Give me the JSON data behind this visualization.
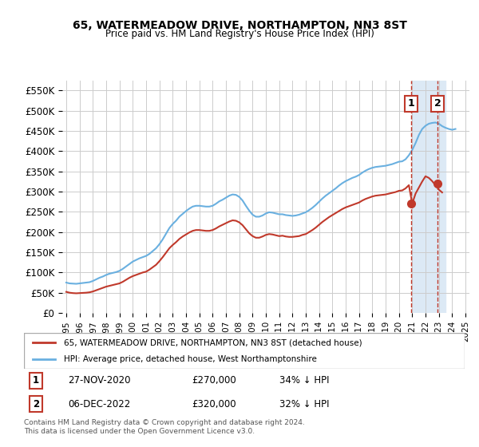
{
  "title": "65, WATERMEADOW DRIVE, NORTHAMPTON, NN3 8ST",
  "subtitle": "Price paid vs. HM Land Registry's House Price Index (HPI)",
  "legend_line1": "65, WATERMEADOW DRIVE, NORTHAMPTON, NN3 8ST (detached house)",
  "legend_line2": "HPI: Average price, detached house, West Northamptonshire",
  "table_row1": [
    "1",
    "27-NOV-2020",
    "£270,000",
    "34% ↓ HPI"
  ],
  "table_row2": [
    "2",
    "06-DEC-2022",
    "£320,000",
    "32% ↓ HPI"
  ],
  "footer": "Contains HM Land Registry data © Crown copyright and database right 2024.\nThis data is licensed under the Open Government Licence v3.0.",
  "hpi_color": "#6ab0e0",
  "price_color": "#c0392b",
  "marker1_color": "#c0392b",
  "marker2_color": "#c0392b",
  "highlight_color": "#dce9f5",
  "dashed_color": "#c0392b",
  "ylim": [
    0,
    575000
  ],
  "yticks": [
    0,
    50000,
    100000,
    150000,
    200000,
    250000,
    300000,
    350000,
    400000,
    450000,
    500000,
    550000
  ],
  "ytick_labels": [
    "£0",
    "£50K",
    "£100K",
    "£150K",
    "£200K",
    "£250K",
    "£300K",
    "£350K",
    "£400K",
    "£450K",
    "£500K",
    "£550K"
  ],
  "hpi_data": {
    "dates": [
      1995.0,
      1995.25,
      1995.5,
      1995.75,
      1996.0,
      1996.25,
      1996.5,
      1996.75,
      1997.0,
      1997.25,
      1997.5,
      1997.75,
      1998.0,
      1998.25,
      1998.5,
      1998.75,
      1999.0,
      1999.25,
      1999.5,
      1999.75,
      2000.0,
      2000.25,
      2000.5,
      2000.75,
      2001.0,
      2001.25,
      2001.5,
      2001.75,
      2002.0,
      2002.25,
      2002.5,
      2002.75,
      2003.0,
      2003.25,
      2003.5,
      2003.75,
      2004.0,
      2004.25,
      2004.5,
      2004.75,
      2005.0,
      2005.25,
      2005.5,
      2005.75,
      2006.0,
      2006.25,
      2006.5,
      2006.75,
      2007.0,
      2007.25,
      2007.5,
      2007.75,
      2008.0,
      2008.25,
      2008.5,
      2008.75,
      2009.0,
      2009.25,
      2009.5,
      2009.75,
      2010.0,
      2010.25,
      2010.5,
      2010.75,
      2011.0,
      2011.25,
      2011.5,
      2011.75,
      2012.0,
      2012.25,
      2012.5,
      2012.75,
      2013.0,
      2013.25,
      2013.5,
      2013.75,
      2014.0,
      2014.25,
      2014.5,
      2014.75,
      2015.0,
      2015.25,
      2015.5,
      2015.75,
      2016.0,
      2016.25,
      2016.5,
      2016.75,
      2017.0,
      2017.25,
      2017.5,
      2017.75,
      2018.0,
      2018.25,
      2018.5,
      2018.75,
      2019.0,
      2019.25,
      2019.5,
      2019.75,
      2020.0,
      2020.25,
      2020.5,
      2020.75,
      2021.0,
      2021.25,
      2021.5,
      2021.75,
      2022.0,
      2022.25,
      2022.5,
      2022.75,
      2023.0,
      2023.25,
      2023.5,
      2023.75,
      2024.0,
      2024.25
    ],
    "values": [
      75000,
      73000,
      72500,
      72000,
      73000,
      74000,
      75000,
      76000,
      79000,
      83000,
      87000,
      90000,
      94000,
      97000,
      99000,
      101000,
      104000,
      109000,
      115000,
      121000,
      127000,
      131000,
      135000,
      138000,
      141000,
      146000,
      153000,
      160000,
      170000,
      182000,
      196000,
      210000,
      220000,
      228000,
      238000,
      245000,
      252000,
      258000,
      263000,
      265000,
      265000,
      264000,
      263000,
      263000,
      265000,
      270000,
      276000,
      280000,
      285000,
      290000,
      293000,
      292000,
      287000,
      278000,
      265000,
      253000,
      243000,
      238000,
      238000,
      241000,
      246000,
      249000,
      248000,
      246000,
      244000,
      244000,
      242000,
      241000,
      240000,
      241000,
      243000,
      246000,
      249000,
      254000,
      260000,
      267000,
      275000,
      283000,
      290000,
      296000,
      302000,
      308000,
      315000,
      321000,
      326000,
      330000,
      334000,
      337000,
      341000,
      347000,
      352000,
      356000,
      359000,
      361000,
      362000,
      363000,
      364000,
      366000,
      368000,
      371000,
      374000,
      375000,
      380000,
      390000,
      403000,
      420000,
      440000,
      455000,
      463000,
      468000,
      470000,
      471000,
      468000,
      462000,
      458000,
      455000,
      453000,
      455000
    ],
    "highlight_start": 2021.0,
    "highlight_end": 2023.5
  },
  "price_data": {
    "dates": [
      1995.0,
      1995.25,
      1995.5,
      1995.75,
      1996.0,
      1996.25,
      1996.5,
      1996.75,
      1997.0,
      1997.25,
      1997.5,
      1997.75,
      1998.0,
      1998.25,
      1998.5,
      1998.75,
      1999.0,
      1999.25,
      1999.5,
      1999.75,
      2000.0,
      2000.25,
      2000.5,
      2000.75,
      2001.0,
      2001.25,
      2001.5,
      2001.75,
      2002.0,
      2002.25,
      2002.5,
      2002.75,
      2003.0,
      2003.25,
      2003.5,
      2003.75,
      2004.0,
      2004.25,
      2004.5,
      2004.75,
      2005.0,
      2005.25,
      2005.5,
      2005.75,
      2006.0,
      2006.25,
      2006.5,
      2006.75,
      2007.0,
      2007.25,
      2007.5,
      2007.75,
      2008.0,
      2008.25,
      2008.5,
      2008.75,
      2009.0,
      2009.25,
      2009.5,
      2009.75,
      2010.0,
      2010.25,
      2010.5,
      2010.75,
      2011.0,
      2011.25,
      2011.5,
      2011.75,
      2012.0,
      2012.25,
      2012.5,
      2012.75,
      2013.0,
      2013.25,
      2013.5,
      2013.75,
      2014.0,
      2014.25,
      2014.5,
      2014.75,
      2015.0,
      2015.25,
      2015.5,
      2015.75,
      2016.0,
      2016.25,
      2016.5,
      2016.75,
      2017.0,
      2017.25,
      2017.5,
      2017.75,
      2018.0,
      2018.25,
      2018.5,
      2018.75,
      2019.0,
      2019.25,
      2019.5,
      2019.75,
      2020.0,
      2020.25,
      2020.5,
      2020.75,
      2021.0,
      2021.25,
      2021.5,
      2021.75,
      2022.0,
      2022.25,
      2022.5,
      2022.75,
      2023.0,
      2023.25
    ],
    "values": [
      52000,
      50000,
      49000,
      48500,
      49000,
      49500,
      50000,
      51000,
      53000,
      56000,
      59000,
      62000,
      65000,
      67000,
      69000,
      71000,
      73000,
      77000,
      82000,
      87000,
      91000,
      94000,
      97000,
      100000,
      102000,
      107000,
      113000,
      119000,
      128000,
      138000,
      149000,
      160000,
      168000,
      175000,
      183000,
      189000,
      194000,
      199000,
      203000,
      205000,
      205000,
      204000,
      203000,
      203000,
      205000,
      209000,
      214000,
      218000,
      222000,
      226000,
      229000,
      228000,
      224000,
      217000,
      207000,
      197000,
      190000,
      186000,
      186000,
      189000,
      193000,
      195000,
      194000,
      192000,
      190000,
      191000,
      189000,
      188000,
      188000,
      189000,
      190000,
      193000,
      195000,
      200000,
      205000,
      211000,
      218000,
      225000,
      231000,
      237000,
      242000,
      247000,
      252000,
      257000,
      261000,
      264000,
      267000,
      270000,
      273000,
      278000,
      282000,
      285000,
      288000,
      290000,
      291000,
      292000,
      293000,
      295000,
      297000,
      299000,
      302000,
      303000,
      308000,
      316000,
      270000,
      295000,
      310000,
      325000,
      338000,
      334000,
      326000,
      316000,
      305000,
      298000
    ],
    "sale1_date": 2020.9,
    "sale1_value": 270000,
    "sale2_date": 2022.92,
    "sale2_value": 320000
  },
  "xtick_years": [
    "1995",
    "1996",
    "1997",
    "1998",
    "1999",
    "2000",
    "2001",
    "2002",
    "2003",
    "2004",
    "2005",
    "2006",
    "2007",
    "2008",
    "2009",
    "2010",
    "2011",
    "2012",
    "2013",
    "2014",
    "2015",
    "2016",
    "2017",
    "2018",
    "2019",
    "2020",
    "2021",
    "2022",
    "2023",
    "2024",
    "2025"
  ],
  "xlim": [
    1994.7,
    2025.3
  ]
}
